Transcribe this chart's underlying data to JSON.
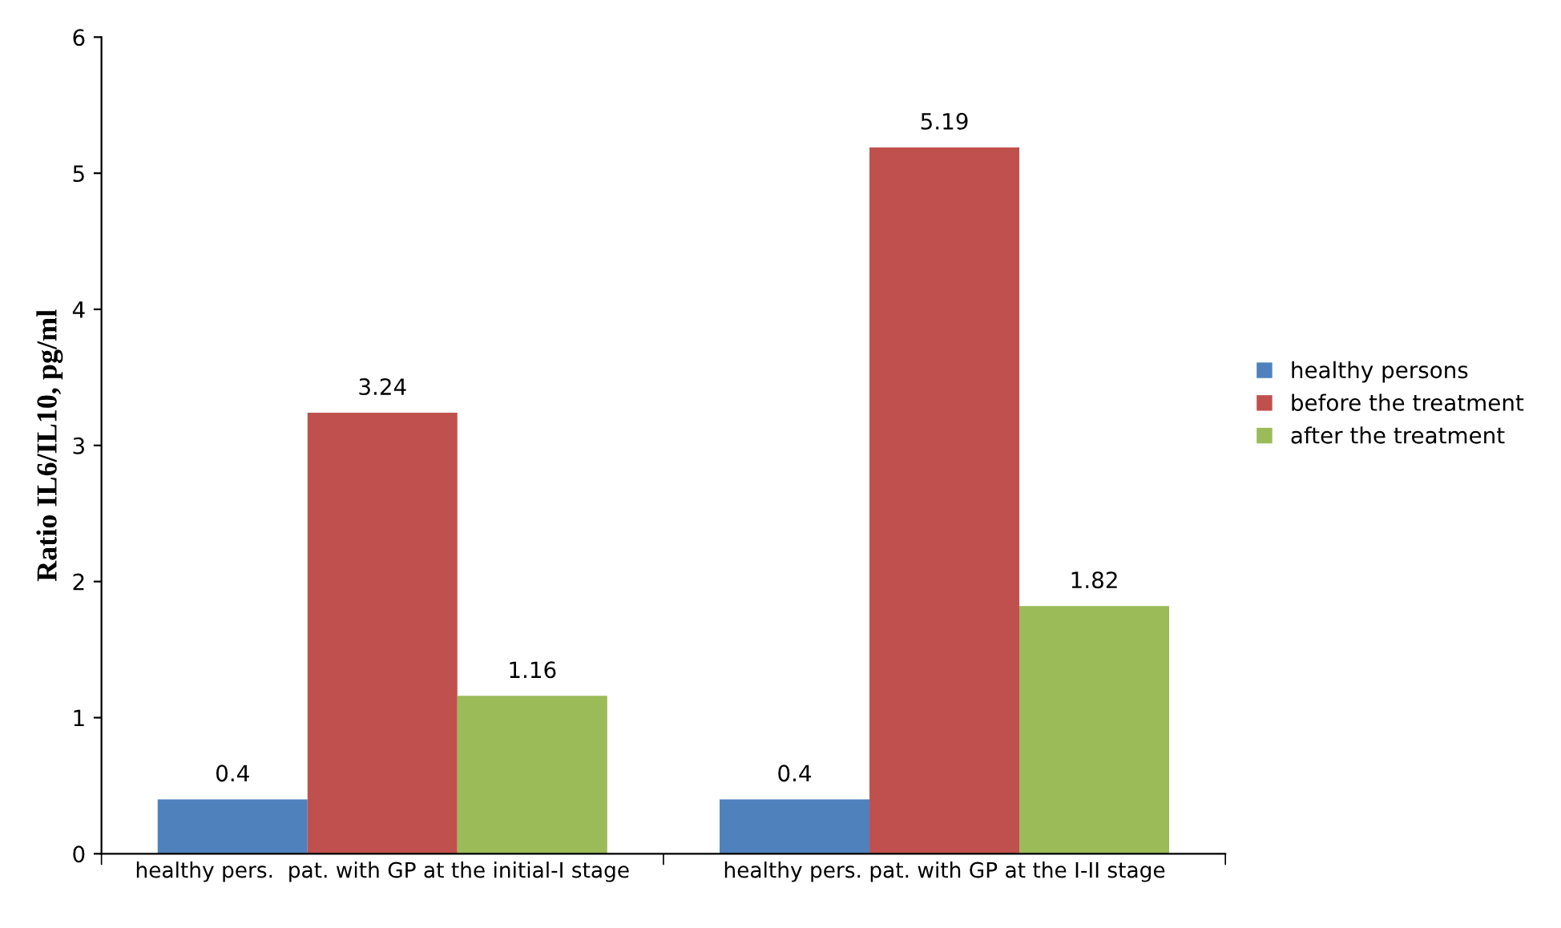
{
  "chart_data": {
    "type": "bar",
    "ylabel": "Ratio IL6/IL10, pg/ml",
    "categories": [
      "healthy pers.  pat. with GP at the initial-I stage",
      "healthy pers. pat. with GP at the I-II stage"
    ],
    "series": [
      {
        "name": "healthy persons",
        "color": "#4f81bd",
        "values": [
          0.4,
          0.4
        ]
      },
      {
        "name": "before the treatment",
        "color": "#c0504d",
        "values": [
          3.24,
          5.19
        ]
      },
      {
        "name": "after the treatment",
        "color": "#9bbb59",
        "values": [
          1.16,
          1.82
        ]
      }
    ],
    "ylim": [
      0,
      6
    ],
    "yticks": [
      0,
      1,
      2,
      3,
      4,
      5,
      6
    ],
    "data_labels": true,
    "grid": false,
    "legend": "right"
  }
}
